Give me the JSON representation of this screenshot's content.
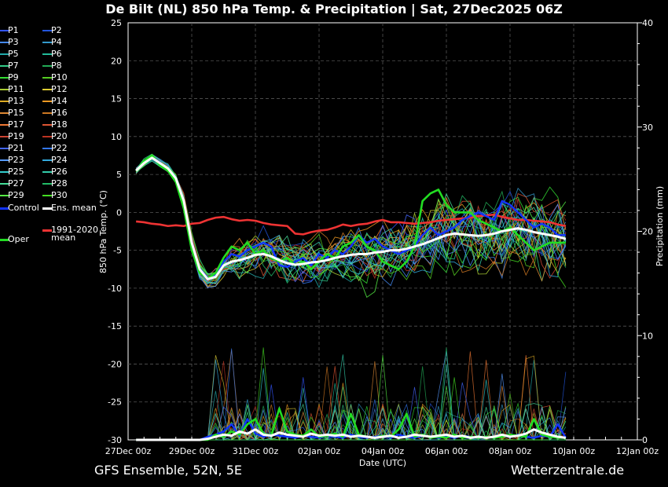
{
  "title": "De Bilt  (NL)  850 hPa Temp. & Precipitation | Sat, 27Dec2025 06Z",
  "footer": {
    "model": "GFS Ensemble, 52N, 5E",
    "site": "Wetterzentrale.de"
  },
  "legend": {
    "members": [
      {
        "label": "P1",
        "color": "#3355ff"
      },
      {
        "label": "P2",
        "color": "#2255dd"
      },
      {
        "label": "P3",
        "color": "#4488ee"
      },
      {
        "label": "P4",
        "color": "#3399cc"
      },
      {
        "label": "P5",
        "color": "#22aaaa"
      },
      {
        "label": "P6",
        "color": "#22bb99"
      },
      {
        "label": "P7",
        "color": "#33cc88"
      },
      {
        "label": "P8",
        "color": "#22aa55"
      },
      {
        "label": "P9",
        "color": "#33dd33"
      },
      {
        "label": "P10",
        "color": "#55cc22"
      },
      {
        "label": "P11",
        "color": "#aacc33"
      },
      {
        "label": "P12",
        "color": "#ddcc33"
      },
      {
        "label": "P13",
        "color": "#ddaa22"
      },
      {
        "label": "P14",
        "color": "#ee9922"
      },
      {
        "label": "P15",
        "color": "#dd8833"
      },
      {
        "label": "P16",
        "color": "#cc7722"
      },
      {
        "label": "P17",
        "color": "#ee7733"
      },
      {
        "label": "P18",
        "color": "#dd5533"
      },
      {
        "label": "P19",
        "color": "#cc4433"
      },
      {
        "label": "P20",
        "color": "#bb3322"
      },
      {
        "label": "P21",
        "color": "#4466ff"
      },
      {
        "label": "P22",
        "color": "#3377ee"
      },
      {
        "label": "P23",
        "color": "#5599ff"
      },
      {
        "label": "P24",
        "color": "#33aadd"
      },
      {
        "label": "P25",
        "color": "#33cccc"
      },
      {
        "label": "P26",
        "color": "#33ccaa"
      },
      {
        "label": "P27",
        "color": "#44dd99"
      },
      {
        "label": "P28",
        "color": "#22bb66"
      },
      {
        "label": "P29",
        "color": "#55ee44"
      },
      {
        "label": "P30",
        "color": "#44dd22"
      }
    ],
    "control": {
      "label": "Control",
      "color": "#1133ff"
    },
    "ens_mean": {
      "label": "Ens. mean",
      "color": "#ffffff"
    },
    "oper": {
      "label": "Oper",
      "color": "#22dd22"
    },
    "clim_line1": "1991-2020",
    "clim_line2": "mean",
    "clim_color": "#ee3333"
  },
  "chart_data": {
    "type": "line",
    "title": "De Bilt  (NL)  850 hPa Temp. & Precipitation | Sat, 27Dec2025 06Z",
    "xlabel": "Date (UTC)",
    "ylabel": "850 hPa Temp. (°C)",
    "y2label": "Precipitation (mm)",
    "ylim": [
      -30,
      25
    ],
    "y2lim": [
      0,
      40
    ],
    "yticks": [
      "25",
      "20",
      "15",
      "10",
      "5",
      "0",
      "-5",
      "-10",
      "-15",
      "-20",
      "-25",
      "-30"
    ],
    "y2ticks": [
      "40",
      "30",
      "20",
      "10",
      "0"
    ],
    "xticks": [
      "27Dec 00z",
      "29Dec 00z",
      "31Dec 00z",
      "02Jan 00z",
      "04Jan 00z",
      "06Jan 00z",
      "08Jan 00z",
      "10Jan 00z",
      "12Jan 00z"
    ],
    "x_hours_range": [
      0,
      384
    ],
    "x_start_hour": 6,
    "grid": true,
    "series": [
      {
        "name": "Ens. mean",
        "color": "#ffffff",
        "temp": [
          5.5,
          6.5,
          7.2,
          6.5,
          5.8,
          4.5,
          1.5,
          -4.0,
          -7.5,
          -8.8,
          -8.5,
          -7.0,
          -6.5,
          -6.3,
          -6.0,
          -5.6,
          -5.5,
          -5.8,
          -6.3,
          -6.7,
          -6.9,
          -6.8,
          -6.6,
          -6.5,
          -6.3,
          -6.0,
          -5.8,
          -5.6,
          -5.5,
          -5.5,
          -5.3,
          -5.2,
          -5.0,
          -5.0,
          -4.8,
          -4.5,
          -4.2,
          -3.8,
          -3.4,
          -3.0,
          -2.8,
          -2.9,
          -3.0,
          -3.1,
          -3.0,
          -2.8,
          -2.5,
          -2.3,
          -2.1,
          -2.3,
          -2.6,
          -2.8,
          -3.0,
          -3.2,
          -3.5
        ],
        "precip": [
          0,
          0,
          0,
          0,
          0,
          0,
          0,
          0,
          0,
          0.1,
          0.3,
          0.5,
          0.4,
          0.8,
          0.6,
          1.0,
          0.5,
          0.4,
          0.7,
          0.5,
          0.4,
          0.3,
          0.6,
          0.4,
          0.5,
          0.4,
          0.5,
          0.3,
          0.4,
          0.3,
          0.2,
          0.3,
          0.4,
          0.2,
          0.3,
          0.5,
          0.4,
          0.3,
          0.4,
          0.5,
          0.3,
          0.4,
          0.2,
          0.3,
          0.2,
          0.3,
          0.5,
          0.3,
          0.4,
          0.6,
          1.0,
          0.7,
          0.5,
          0.3,
          0.2
        ]
      },
      {
        "name": "Oper",
        "color": "#22dd22",
        "temp": [
          5.5,
          6.8,
          7.5,
          6.2,
          5.5,
          4.0,
          0.5,
          -5.0,
          -8.0,
          -8.7,
          -8.0,
          -6.0,
          -4.5,
          -5.0,
          -4.0,
          -5.5,
          -5.0,
          -6.0,
          -6.5,
          -6.0,
          -7.0,
          -6.5,
          -7.5,
          -6.5,
          -5.5,
          -6.0,
          -4.5,
          -4.0,
          -3.0,
          -4.5,
          -5.0,
          -6.5,
          -7.0,
          -7.5,
          -6.5,
          -4.5,
          1.5,
          2.5,
          3.0,
          1.0,
          0.0,
          0.0,
          0.0,
          -1.0,
          -1.5,
          -2.0,
          -2.5,
          -2.0,
          -3.0,
          -4.0,
          -5.0,
          -4.5,
          -4.0,
          -4.0,
          -4.0
        ],
        "precip": [
          0,
          0,
          0,
          0,
          0,
          0,
          0,
          0,
          0,
          0,
          0.5,
          0.3,
          0.8,
          0.5,
          1.5,
          2.0,
          0.6,
          0.4,
          3.0,
          0.8,
          0.5,
          0.4,
          1.0,
          0.3,
          0.4,
          0.6,
          0.3,
          2.5,
          0.5,
          0.3,
          0.2,
          0.4,
          0.3,
          1.0,
          2.5,
          0.3,
          0.5,
          0.2,
          0.3,
          0.2,
          0.5,
          0.2,
          0.3,
          0.2,
          0.3,
          0.2,
          0.3,
          0.5,
          0.4,
          0.3,
          2.0,
          0.5,
          0.3,
          0.2,
          0.2
        ]
      },
      {
        "name": "Control",
        "color": "#1133ff",
        "temp": [
          5.5,
          6.6,
          7.3,
          6.6,
          5.7,
          4.6,
          1.6,
          -3.8,
          -7.4,
          -8.6,
          -8.3,
          -6.5,
          -5.5,
          -5.8,
          -5.0,
          -4.5,
          -4.0,
          -4.5,
          -7.0,
          -7.2,
          -6.5,
          -6.0,
          -7.0,
          -5.5,
          -6.0,
          -5.0,
          -5.5,
          -4.5,
          -3.0,
          -4.0,
          -3.5,
          -4.5,
          -5.0,
          -5.5,
          -5.0,
          -4.5,
          -3.0,
          -2.0,
          -3.0,
          -2.5,
          -2.0,
          -1.0,
          -0.5,
          0.0,
          -0.5,
          -1.0,
          1.5,
          1.0,
          0.0,
          -1.0,
          -2.0,
          -1.5,
          -2.0,
          -3.0,
          -3.0
        ],
        "precip": [
          0,
          0,
          0,
          0,
          0,
          0,
          0,
          0,
          0,
          0.3,
          0.5,
          0.8,
          1.5,
          0.4,
          2.0,
          0.6,
          0.3,
          0.5,
          0.4,
          0.3,
          0.2,
          0.4,
          0.3,
          0.2,
          0.4,
          0.3,
          0.2,
          0.5,
          0.3,
          0.2,
          0.3,
          0.4,
          0.2,
          0.5,
          0.3,
          0.2,
          0.4,
          0.3,
          0.2,
          0.3,
          0.2,
          0.4,
          0.3,
          0.2,
          0.3,
          0.2,
          0.4,
          0.3,
          0.5,
          0.3,
          0.2,
          0.4,
          0.3,
          1.5,
          0.2
        ]
      },
      {
        "name": "1991-2020 mean",
        "color": "#ee3333",
        "temp": [
          -1.2,
          -1.3,
          -1.5,
          -1.6,
          -1.8,
          -1.7,
          -1.8,
          -1.5,
          -1.4,
          -1.0,
          -0.7,
          -0.6,
          -0.9,
          -1.1,
          -1.0,
          -1.1,
          -1.4,
          -1.6,
          -1.7,
          -1.8,
          -2.8,
          -2.9,
          -2.6,
          -2.4,
          -2.3,
          -2.0,
          -1.6,
          -1.8,
          -1.6,
          -1.5,
          -1.2,
          -1.0,
          -1.3,
          -1.3,
          -1.4,
          -1.5,
          -1.4,
          -1.3,
          -1.1,
          -1.0,
          -0.9,
          -0.8,
          -0.7,
          -0.5,
          -0.4,
          -0.3,
          -0.6,
          -0.8,
          -1.0,
          -1.0,
          -1.1,
          -1.2,
          -1.3,
          -1.6,
          -1.8
        ]
      }
    ]
  }
}
